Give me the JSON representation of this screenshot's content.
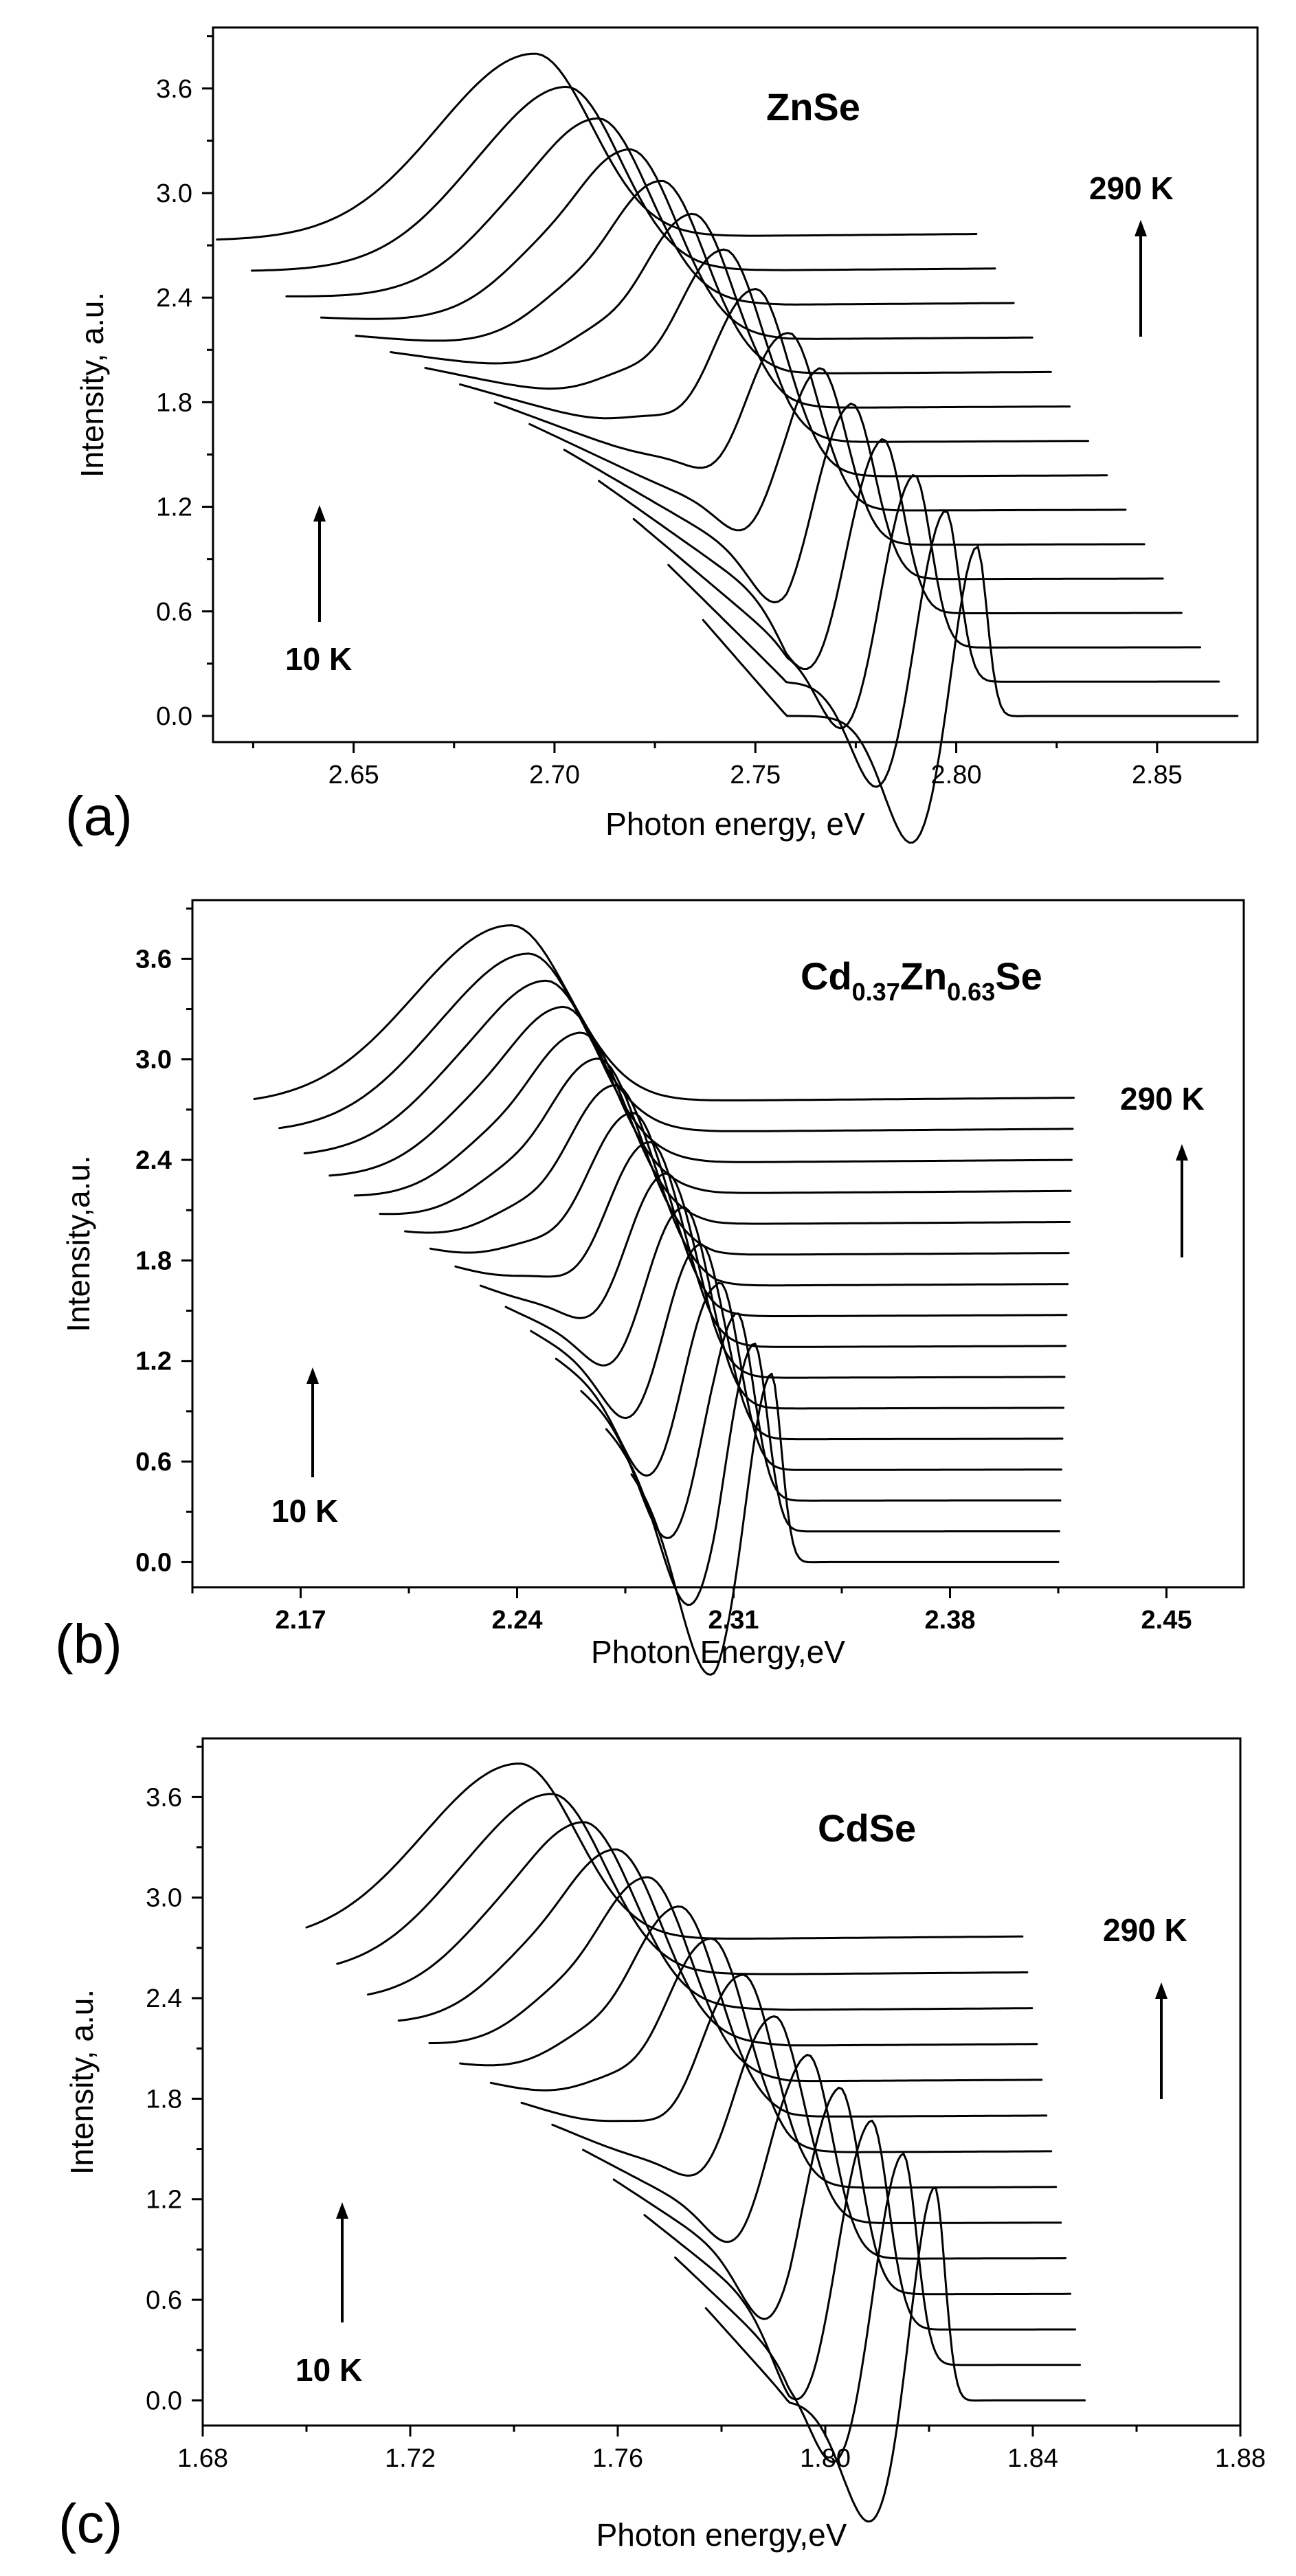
{
  "chart_data": [
    {
      "type": "line",
      "panel_label": "(a)",
      "material": "ZnSe",
      "xlabel": "Photon energy, eV",
      "ylabel": "Intensity, a.u.",
      "xlim": [
        2.615,
        2.875
      ],
      "ylim": [
        -0.15,
        3.95
      ],
      "xticks": [
        2.65,
        2.7,
        2.75,
        2.8,
        2.85
      ],
      "xtick_labels": [
        "2.65",
        "2.70",
        "2.75",
        "2.80",
        "2.85"
      ],
      "yticks": [
        0.0,
        0.6,
        1.2,
        1.8,
        2.4,
        3.0,
        3.6
      ],
      "ytick_labels": [
        "0.0",
        "0.6",
        "1.2",
        "1.8",
        "2.4",
        "3.0",
        "3.6"
      ],
      "tick_bold": false,
      "high_temp_label": "290 K",
      "low_temp_label": "10 K",
      "series_params": {
        "count": 15,
        "peak_x_low_temp": 2.805,
        "peak_x_high_temp": 2.695,
        "peak_height_low_temp": 1.05,
        "peak_height_high_temp": 3.8,
        "x_start_low_temp": 2.737,
        "x_start_high_temp": 2.616,
        "x_end_low_temp": 2.87,
        "x_end_high_temp": 2.805
      },
      "grid": false
    },
    {
      "type": "line",
      "panel_label": "(b)",
      "material": "Cd",
      "material_sub1": "0.37",
      "material_mid": "Zn",
      "material_sub2": "0.63",
      "material_end": "Se",
      "xlabel": "Photon Energy,eV",
      "ylabel": "Intensity,a.u.",
      "xlim": [
        2.135,
        2.475
      ],
      "ylim": [
        -0.15,
        3.95
      ],
      "xticks": [
        2.17,
        2.24,
        2.31,
        2.38,
        2.45
      ],
      "xtick_labels": [
        "2.17",
        "2.24",
        "2.31",
        "2.38",
        "2.45"
      ],
      "yticks": [
        0.0,
        0.6,
        1.2,
        1.8,
        2.4,
        3.0,
        3.6
      ],
      "ytick_labels": [
        "0.0",
        "0.6",
        "1.2",
        "1.8",
        "2.4",
        "3.0",
        "3.6"
      ],
      "tick_bold": true,
      "high_temp_label": "290 K",
      "low_temp_label": "10 K",
      "series_params": {
        "count": 16,
        "peak_x_low_temp": 2.322,
        "peak_x_high_temp": 2.238,
        "peak_height_low_temp": 1.2,
        "peak_height_high_temp": 3.8,
        "x_start_low_temp": 2.277,
        "x_start_high_temp": 2.155,
        "x_end_low_temp": 2.415,
        "x_end_high_temp": 2.42
      },
      "grid": false
    },
    {
      "type": "line",
      "panel_label": "(c)",
      "material": "CdSe",
      "xlabel": "Photon energy,eV",
      "ylabel": "Intensity, a.u.",
      "xlim": [
        1.68,
        1.88
      ],
      "ylim": [
        -0.15,
        3.95
      ],
      "xticks": [
        1.68,
        1.72,
        1.76,
        1.8,
        1.84,
        1.88
      ],
      "xtick_labels": [
        "1.68",
        "1.72",
        "1.76",
        "1.80",
        "1.84",
        "1.88"
      ],
      "yticks": [
        0.0,
        0.6,
        1.2,
        1.8,
        2.4,
        3.0,
        3.6
      ],
      "ytick_labels": [
        "0.0",
        "0.6",
        "1.2",
        "1.8",
        "2.4",
        "3.0",
        "3.6"
      ],
      "tick_bold": false,
      "high_temp_label": "290 K",
      "low_temp_label": "10 K",
      "series_params": {
        "count": 14,
        "peak_x_low_temp": 1.821,
        "peak_x_high_temp": 1.741,
        "peak_height_low_temp": 1.35,
        "peak_height_high_temp": 3.8,
        "x_start_low_temp": 1.777,
        "x_start_high_temp": 1.7,
        "x_end_low_temp": 1.85,
        "x_end_high_temp": 1.838
      },
      "grid": false
    }
  ]
}
